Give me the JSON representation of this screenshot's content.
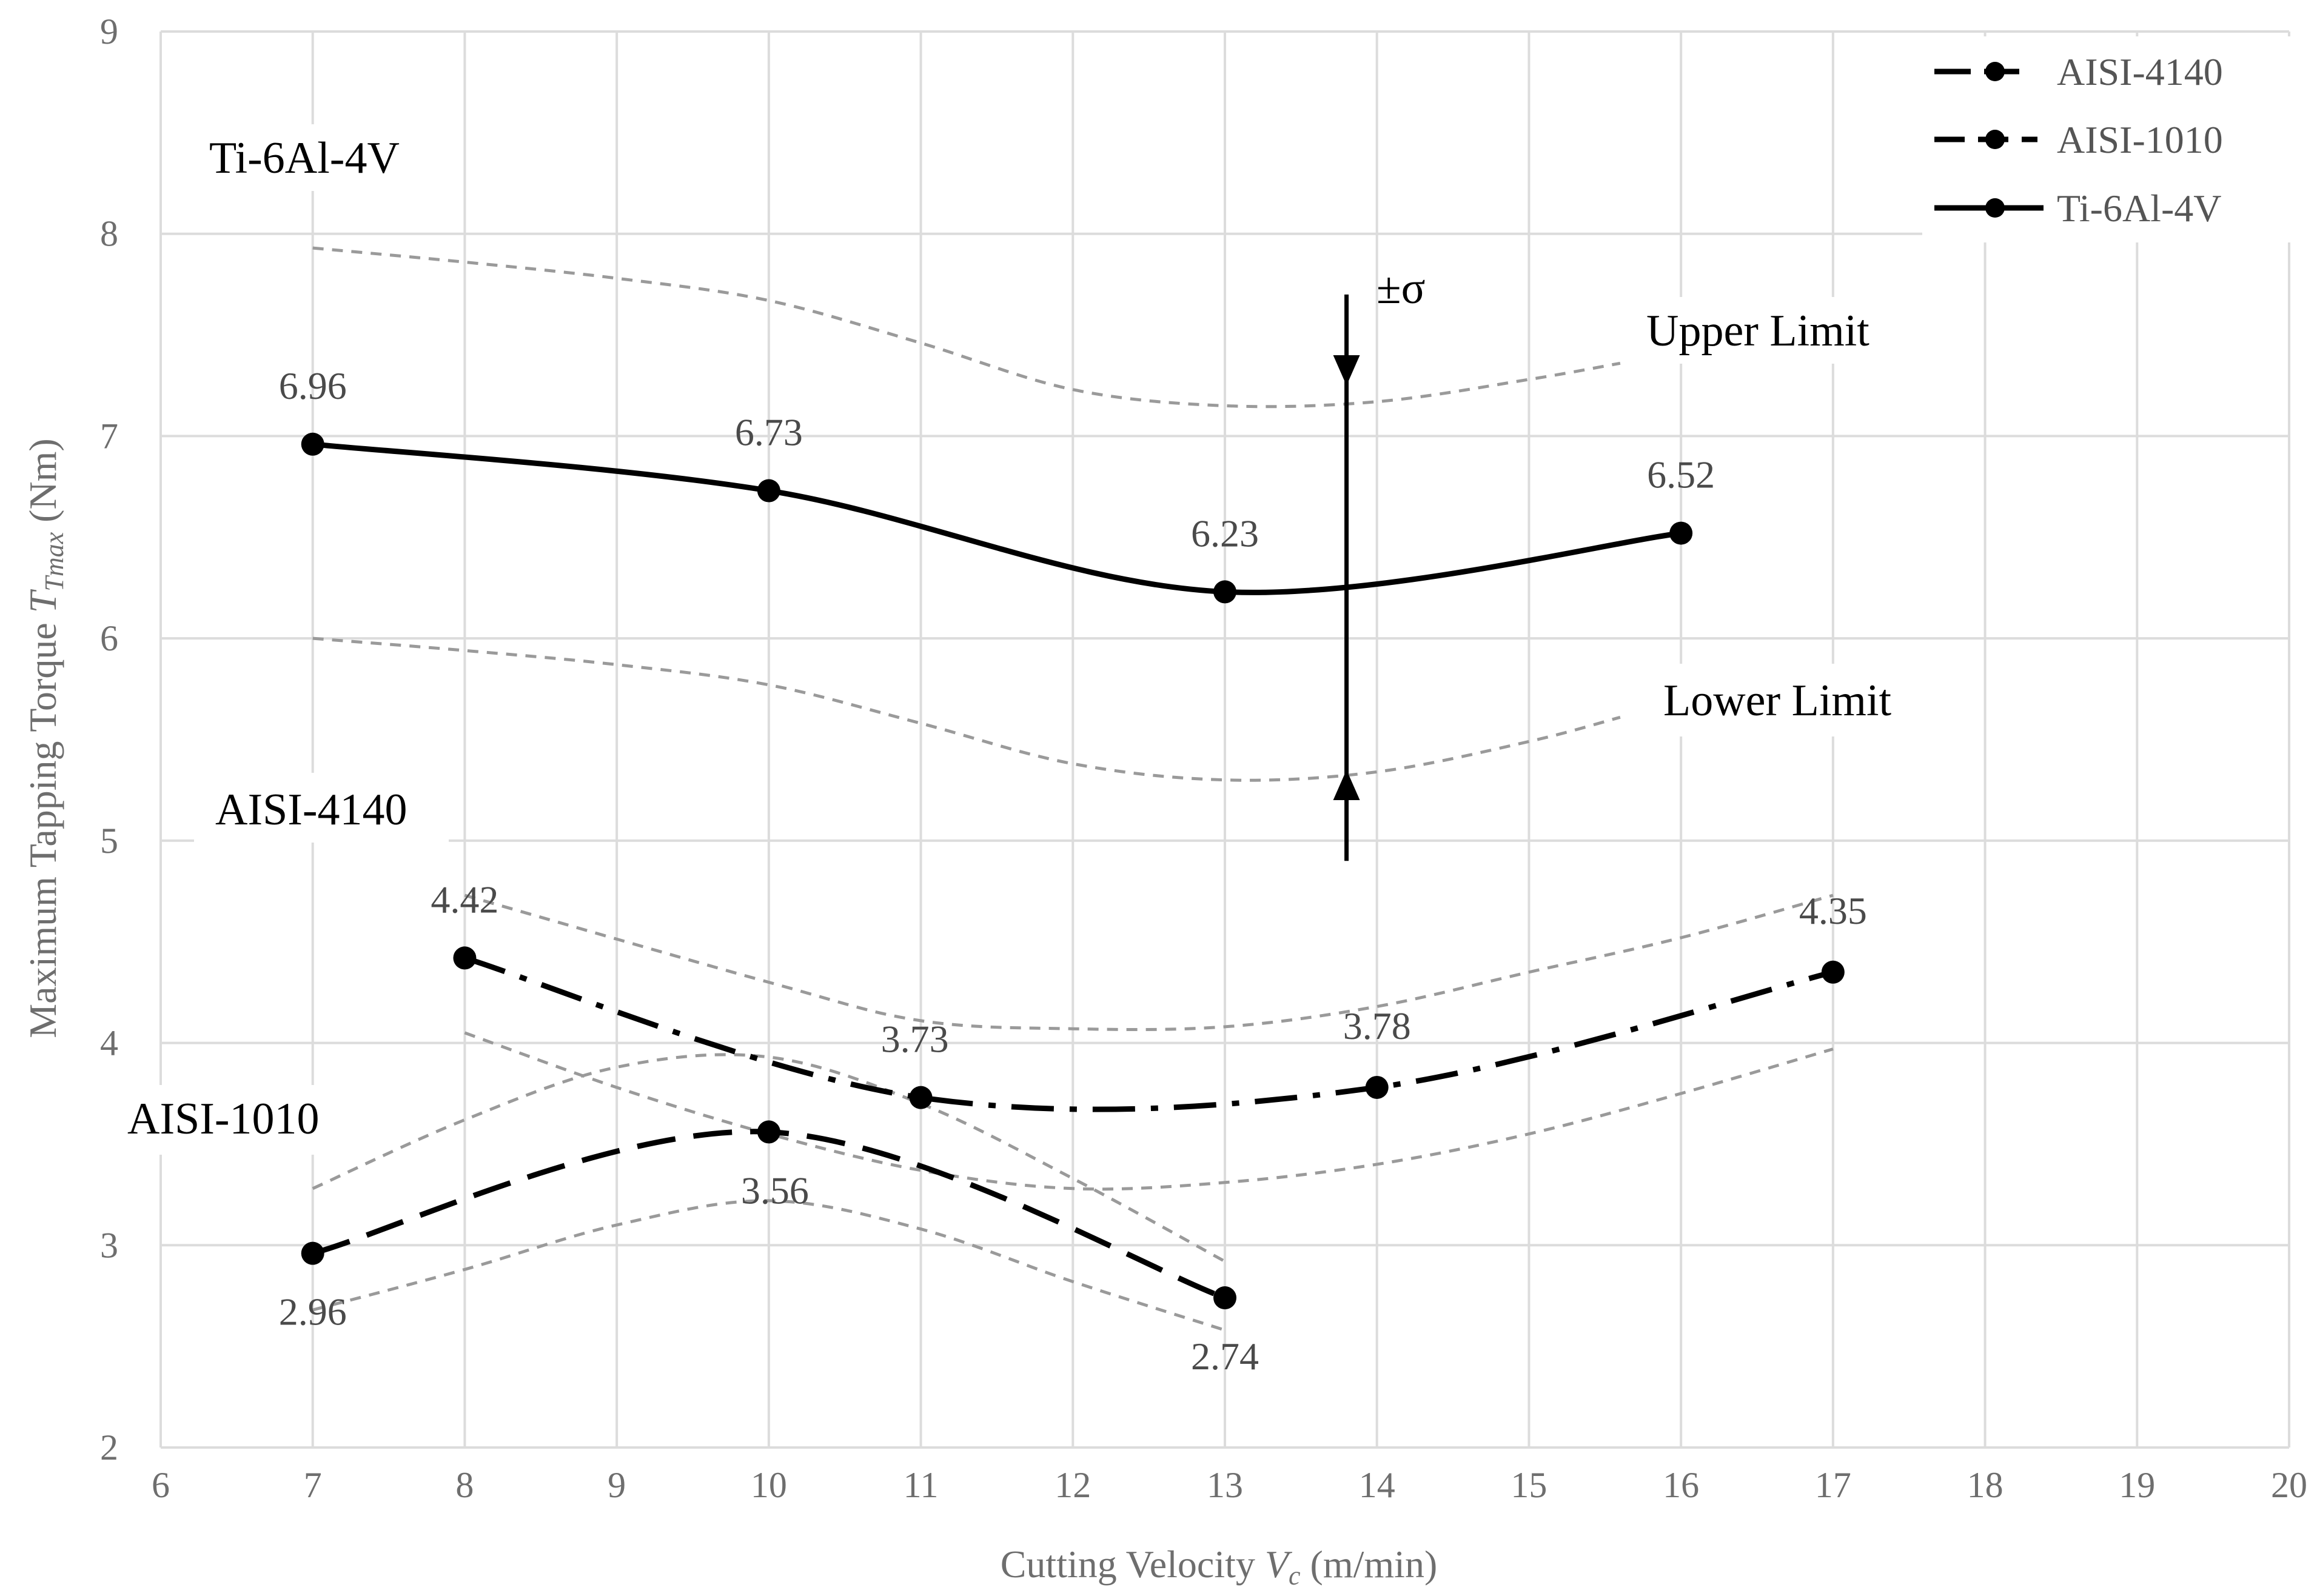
{
  "chart_data": {
    "type": "line",
    "xlabel_prefix": "Cutting Velocity ",
    "xlabel_var": "V",
    "xlabel_sub": "c",
    "xlabel_suffix": " (m/min)",
    "ylabel_prefix": "Maximum Tapping Torque ",
    "ylabel_var": "T",
    "ylabel_sub": "Tmax",
    "ylabel_suffix": "  (Nm)",
    "xlim": [
      6,
      20
    ],
    "ylim": [
      2,
      9
    ],
    "xticks": [
      6,
      7,
      8,
      9,
      10,
      11,
      12,
      13,
      14,
      15,
      16,
      17,
      18,
      19,
      20
    ],
    "yticks": [
      2,
      3,
      4,
      5,
      6,
      7,
      8,
      9
    ],
    "grid": true,
    "legend_position": "top-right",
    "series": [
      {
        "name": "AISI-4140",
        "style": "dash-dot",
        "x": [
          8,
          11,
          14,
          17
        ],
        "y": [
          4.42,
          3.73,
          3.78,
          4.35
        ],
        "labels": [
          "4.42",
          "3.73",
          "3.78",
          "4.35"
        ],
        "upper": {
          "x": [
            8,
            10,
            11,
            12,
            13,
            14,
            15,
            16,
            17
          ],
          "y": [
            4.73,
            4.3,
            4.11,
            4.07,
            4.08,
            4.18,
            4.35,
            4.52,
            4.73
          ]
        },
        "lower": {
          "x": [
            8,
            9,
            10,
            11,
            12,
            13,
            14,
            15,
            16,
            17
          ],
          "y": [
            4.05,
            3.78,
            3.55,
            3.37,
            3.28,
            3.31,
            3.4,
            3.55,
            3.75,
            3.97
          ]
        }
      },
      {
        "name": "AISI-1010",
        "style": "dashed",
        "x": [
          7,
          10,
          13
        ],
        "y": [
          2.96,
          3.56,
          2.74
        ],
        "labels": [
          "2.96",
          "3.56",
          "2.74"
        ],
        "upper": {
          "x": [
            7,
            8,
            9,
            10,
            11,
            12,
            13
          ],
          "y": [
            3.28,
            3.62,
            3.88,
            3.93,
            3.7,
            3.33,
            2.92
          ]
        },
        "lower": {
          "x": [
            7,
            8,
            9,
            10,
            11,
            12,
            13
          ],
          "y": [
            2.68,
            2.88,
            3.1,
            3.22,
            3.08,
            2.82,
            2.58
          ]
        }
      },
      {
        "name": "Ti-6Al-4V",
        "style": "solid",
        "x": [
          7,
          10,
          13,
          16
        ],
        "y": [
          6.96,
          6.73,
          6.23,
          6.52
        ],
        "labels": [
          "6.96",
          "6.73",
          "6.23",
          "6.52"
        ],
        "upper": {
          "x": [
            7,
            8,
            9,
            10,
            11,
            12,
            13,
            14,
            15,
            15.6
          ],
          "y": [
            7.93,
            7.86,
            7.78,
            7.67,
            7.46,
            7.23,
            7.15,
            7.17,
            7.28,
            7.36
          ]
        },
        "lower": {
          "x": [
            7,
            8,
            9,
            10,
            11,
            12,
            13,
            14,
            15,
            15.6
          ],
          "y": [
            6.0,
            5.94,
            5.87,
            5.77,
            5.58,
            5.38,
            5.3,
            5.34,
            5.49,
            5.61
          ]
        }
      }
    ],
    "annotations": {
      "ti_label": "Ti-6Al-4V",
      "aisi4140_label": "AISI-4140",
      "aisi1010_label": "AISI-1010",
      "upper_limit": "Upper Limit",
      "lower_limit": "Lower Limit",
      "sigma": "±σ",
      "sigma_x": 13.8,
      "sigma_top": 7.7,
      "sigma_bottom": 4.9,
      "sigma_upper": 7.25,
      "sigma_lower": 5.35
    }
  }
}
